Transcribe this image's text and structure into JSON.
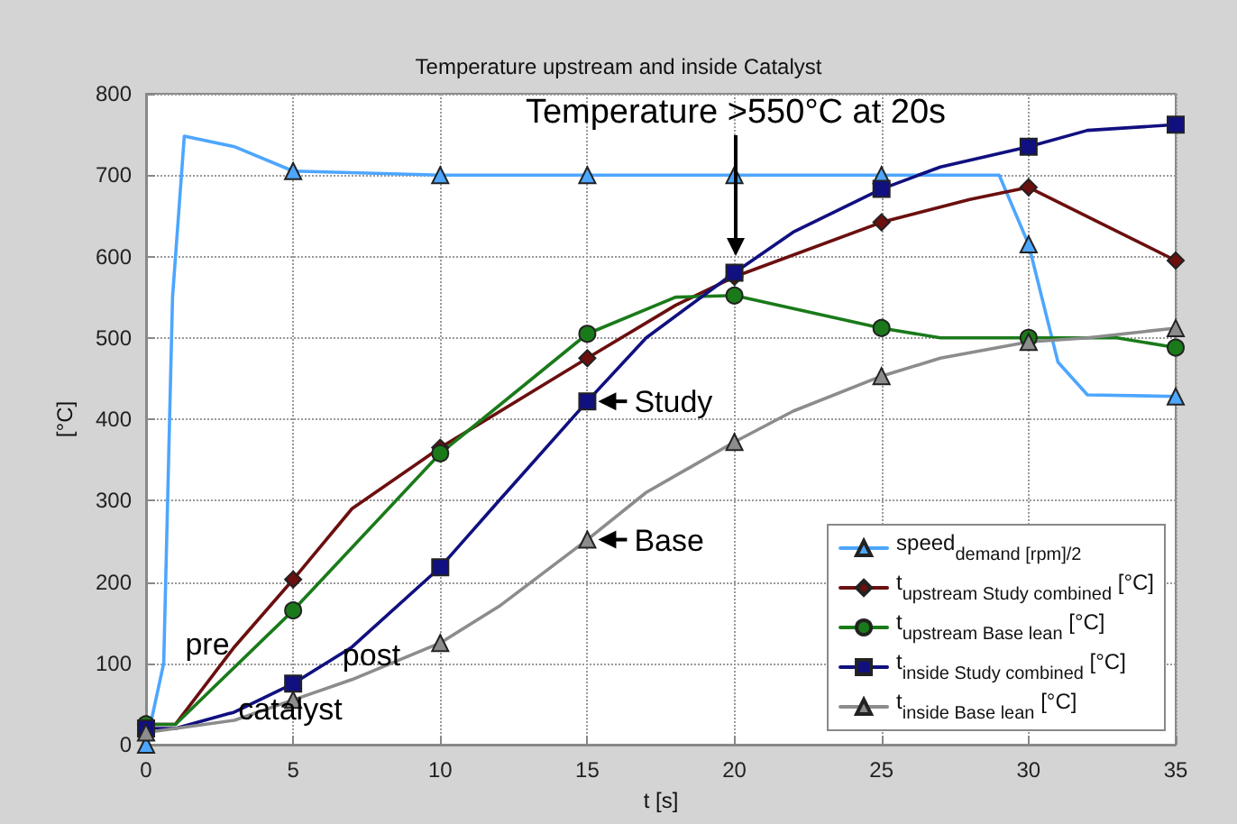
{
  "chart_data": {
    "type": "line",
    "title": "Temperature upstream and inside Catalyst",
    "xlabel": "t [s]",
    "ylabel": "[°C]",
    "xlim": [
      0,
      35
    ],
    "xticks": [
      0,
      5,
      10,
      15,
      20,
      25,
      30,
      35
    ],
    "ylim": [
      0,
      800
    ],
    "yticks": [
      0,
      100,
      200,
      300,
      400,
      500,
      600,
      700,
      800
    ],
    "grid": true,
    "legend": "bottom right",
    "line_style": "solid",
    "series": [
      {
        "name": "speed$_{demand [rpm]/2}$",
        "color": "#4da6ff",
        "marker": "triangle",
        "x": [
          0,
          0.6,
          0.9,
          1.3,
          3,
          5,
          10,
          15,
          20,
          25,
          29,
          30,
          31,
          32,
          35
        ],
        "values": [
          0,
          100,
          550,
          748,
          735,
          705,
          700,
          700,
          700,
          700,
          700,
          615,
          470,
          430,
          428
        ]
      },
      {
        "name": "t$_{upstream Study combined}$ [°C]",
        "color": "#6b0f0f",
        "marker": "diamond",
        "x": [
          0,
          1,
          3,
          5,
          7,
          10,
          15,
          18,
          20,
          25,
          28,
          30,
          35
        ],
        "values": [
          25,
          25,
          120,
          203,
          290,
          365,
          475,
          540,
          575,
          642,
          670,
          685,
          595
        ]
      },
      {
        "name": "t$_{upstream Base lean}$ [°C]",
        "color": "#1a7a1a",
        "marker": "circle",
        "x": [
          0,
          1,
          5,
          10,
          15,
          18,
          20,
          25,
          27,
          30,
          33,
          35
        ],
        "values": [
          25,
          25,
          165,
          358,
          505,
          550,
          552,
          512,
          500,
          500,
          500,
          488
        ]
      },
      {
        "name": "t$_{inside Study combined}$ [°C]",
        "color": "#101080",
        "marker": "square",
        "x": [
          0,
          1,
          3,
          5,
          7,
          10,
          12,
          15,
          17,
          20,
          22,
          25,
          27,
          30,
          32,
          35
        ],
        "values": [
          20,
          20,
          40,
          75,
          120,
          218,
          300,
          422,
          500,
          580,
          630,
          683,
          710,
          735,
          755,
          762
        ]
      },
      {
        "name": "t$_{inside Base lean}$ [°C]",
        "color": "#8c8c8c",
        "marker": "triangle",
        "x": [
          0,
          1,
          3,
          5,
          7,
          10,
          12,
          15,
          17,
          20,
          22,
          25,
          27,
          30,
          32,
          35
        ],
        "values": [
          15,
          20,
          30,
          55,
          80,
          125,
          170,
          252,
          310,
          372,
          410,
          453,
          475,
          495,
          500,
          512
        ]
      }
    ],
    "annotations": [
      "Temperature >550°C at 20s",
      {
        "text": "Study",
        "x": 15,
        "y": 422
      },
      {
        "text": "Base",
        "x": 15,
        "y": 252
      },
      "pre",
      "post",
      "catalyst"
    ]
  }
}
